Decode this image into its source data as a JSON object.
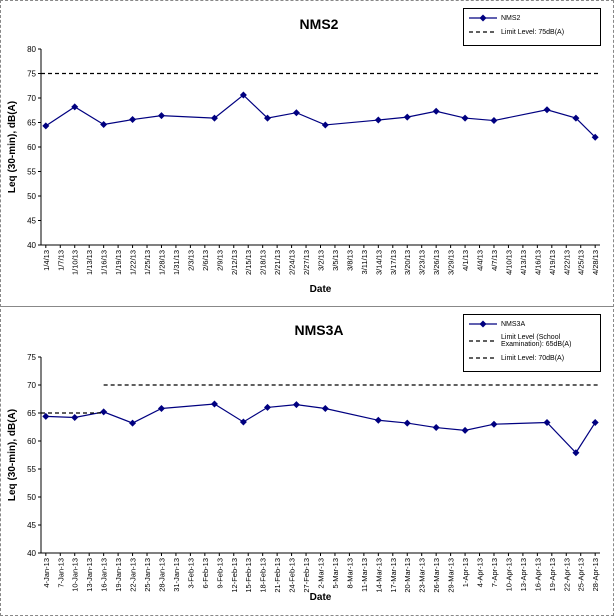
{
  "chart_data": [
    {
      "type": "line",
      "title": "NMS2",
      "x_label": "Date",
      "y_label": "Leq (30-min), dB(A)",
      "xlim": [
        "1/3/13",
        "4/29/13"
      ],
      "xticks": [
        "1/4/13",
        "1/7/13",
        "1/10/13",
        "1/13/13",
        "1/16/13",
        "1/19/13",
        "1/22/13",
        "1/25/13",
        "1/28/13",
        "1/31/13",
        "2/3/13",
        "2/6/13",
        "2/9/13",
        "2/12/13",
        "2/15/13",
        "2/18/13",
        "2/21/13",
        "2/24/13",
        "2/27/13",
        "3/2/13",
        "3/5/13",
        "3/8/13",
        "3/11/13",
        "3/14/13",
        "3/17/13",
        "3/20/13",
        "3/23/13",
        "3/26/13",
        "3/29/13",
        "4/1/13",
        "4/4/13",
        "4/7/13",
        "4/10/13",
        "4/13/13",
        "4/16/13",
        "4/19/13",
        "4/22/13",
        "4/25/13",
        "4/28/13"
      ],
      "ylim": [
        40,
        80
      ],
      "yticks": [
        40,
        45,
        50,
        55,
        60,
        65,
        70,
        75,
        80
      ],
      "legend": "upper right",
      "series": [
        {
          "name": "NMS2",
          "color": "#000080",
          "marker": "diamond",
          "dashed": false,
          "x": [
            "1/4/13",
            "1/10/13",
            "1/16/13",
            "1/22/13",
            "1/28/13",
            "2/8/13",
            "2/14/13",
            "2/19/13",
            "2/25/13",
            "3/3/13",
            "3/14/13",
            "3/20/13",
            "3/26/13",
            "4/1/13",
            "4/7/13",
            "4/18/13",
            "4/24/13",
            "4/28/13"
          ],
          "values": [
            64.3,
            68.2,
            64.6,
            65.6,
            66.4,
            65.9,
            70.6,
            65.9,
            67.0,
            64.5,
            65.5,
            66.1,
            67.3,
            65.9,
            65.4,
            67.6,
            65.9,
            62.0
          ]
        },
        {
          "name": "Limit Level: 75dB(A)",
          "color": "#000000",
          "marker": "none",
          "dashed": true,
          "x": [
            "1/3/13",
            "4/29/13"
          ],
          "values": [
            75,
            75
          ]
        }
      ]
    },
    {
      "type": "line",
      "title": "NMS3A",
      "x_label": "Date",
      "y_label": "Leq (30-min), dB(A)",
      "xlim": [
        "3-Jan-13",
        "29-Apr-13"
      ],
      "xticks": [
        "4-Jan-13",
        "7-Jan-13",
        "10-Jan-13",
        "13-Jan-13",
        "16-Jan-13",
        "19-Jan-13",
        "22-Jan-13",
        "25-Jan-13",
        "28-Jan-13",
        "31-Jan-13",
        "3-Feb-13",
        "6-Feb-13",
        "9-Feb-13",
        "12-Feb-13",
        "15-Feb-13",
        "18-Feb-13",
        "21-Feb-13",
        "24-Feb-13",
        "27-Feb-13",
        "2-Mar-13",
        "5-Mar-13",
        "8-Mar-13",
        "11-Mar-13",
        "14-Mar-13",
        "17-Mar-13",
        "20-Mar-13",
        "23-Mar-13",
        "26-Mar-13",
        "29-Mar-13",
        "1-Apr-13",
        "4-Apr-13",
        "7-Apr-13",
        "10-Apr-13",
        "13-Apr-13",
        "16-Apr-13",
        "19-Apr-13",
        "22-Apr-13",
        "25-Apr-13",
        "28-Apr-13"
      ],
      "ylim": [
        40,
        75
      ],
      "yticks": [
        40,
        45,
        50,
        55,
        60,
        65,
        70,
        75
      ],
      "legend": "upper right",
      "series": [
        {
          "name": "NMS3A",
          "color": "#000080",
          "marker": "diamond",
          "dashed": false,
          "x": [
            "4-Jan-13",
            "10-Jan-13",
            "16-Jan-13",
            "22-Jan-13",
            "28-Jan-13",
            "8-Feb-13",
            "14-Feb-13",
            "19-Feb-13",
            "25-Feb-13",
            "3-Mar-13",
            "14-Mar-13",
            "20-Mar-13",
            "26-Mar-13",
            "1-Apr-13",
            "7-Apr-13",
            "18-Apr-13",
            "24-Apr-13",
            "28-Apr-13"
          ],
          "values": [
            64.4,
            64.2,
            65.2,
            63.2,
            65.8,
            66.6,
            63.4,
            66.0,
            66.5,
            65.8,
            63.7,
            63.2,
            62.4,
            61.9,
            63.0,
            63.3,
            57.9,
            63.3
          ]
        },
        {
          "name": "Limit Level (School Examination): 65dB(A)",
          "color": "#000000",
          "marker": "none",
          "dashed": true,
          "x": [
            "3-Jan-13",
            "16-Jan-13"
          ],
          "values": [
            65,
            65
          ]
        },
        {
          "name": "Limit Level: 70dB(A)",
          "color": "#000000",
          "marker": "none",
          "dashed": true,
          "x": [
            "16-Jan-13",
            "29-Apr-13"
          ],
          "values": [
            70,
            70
          ]
        }
      ]
    }
  ]
}
